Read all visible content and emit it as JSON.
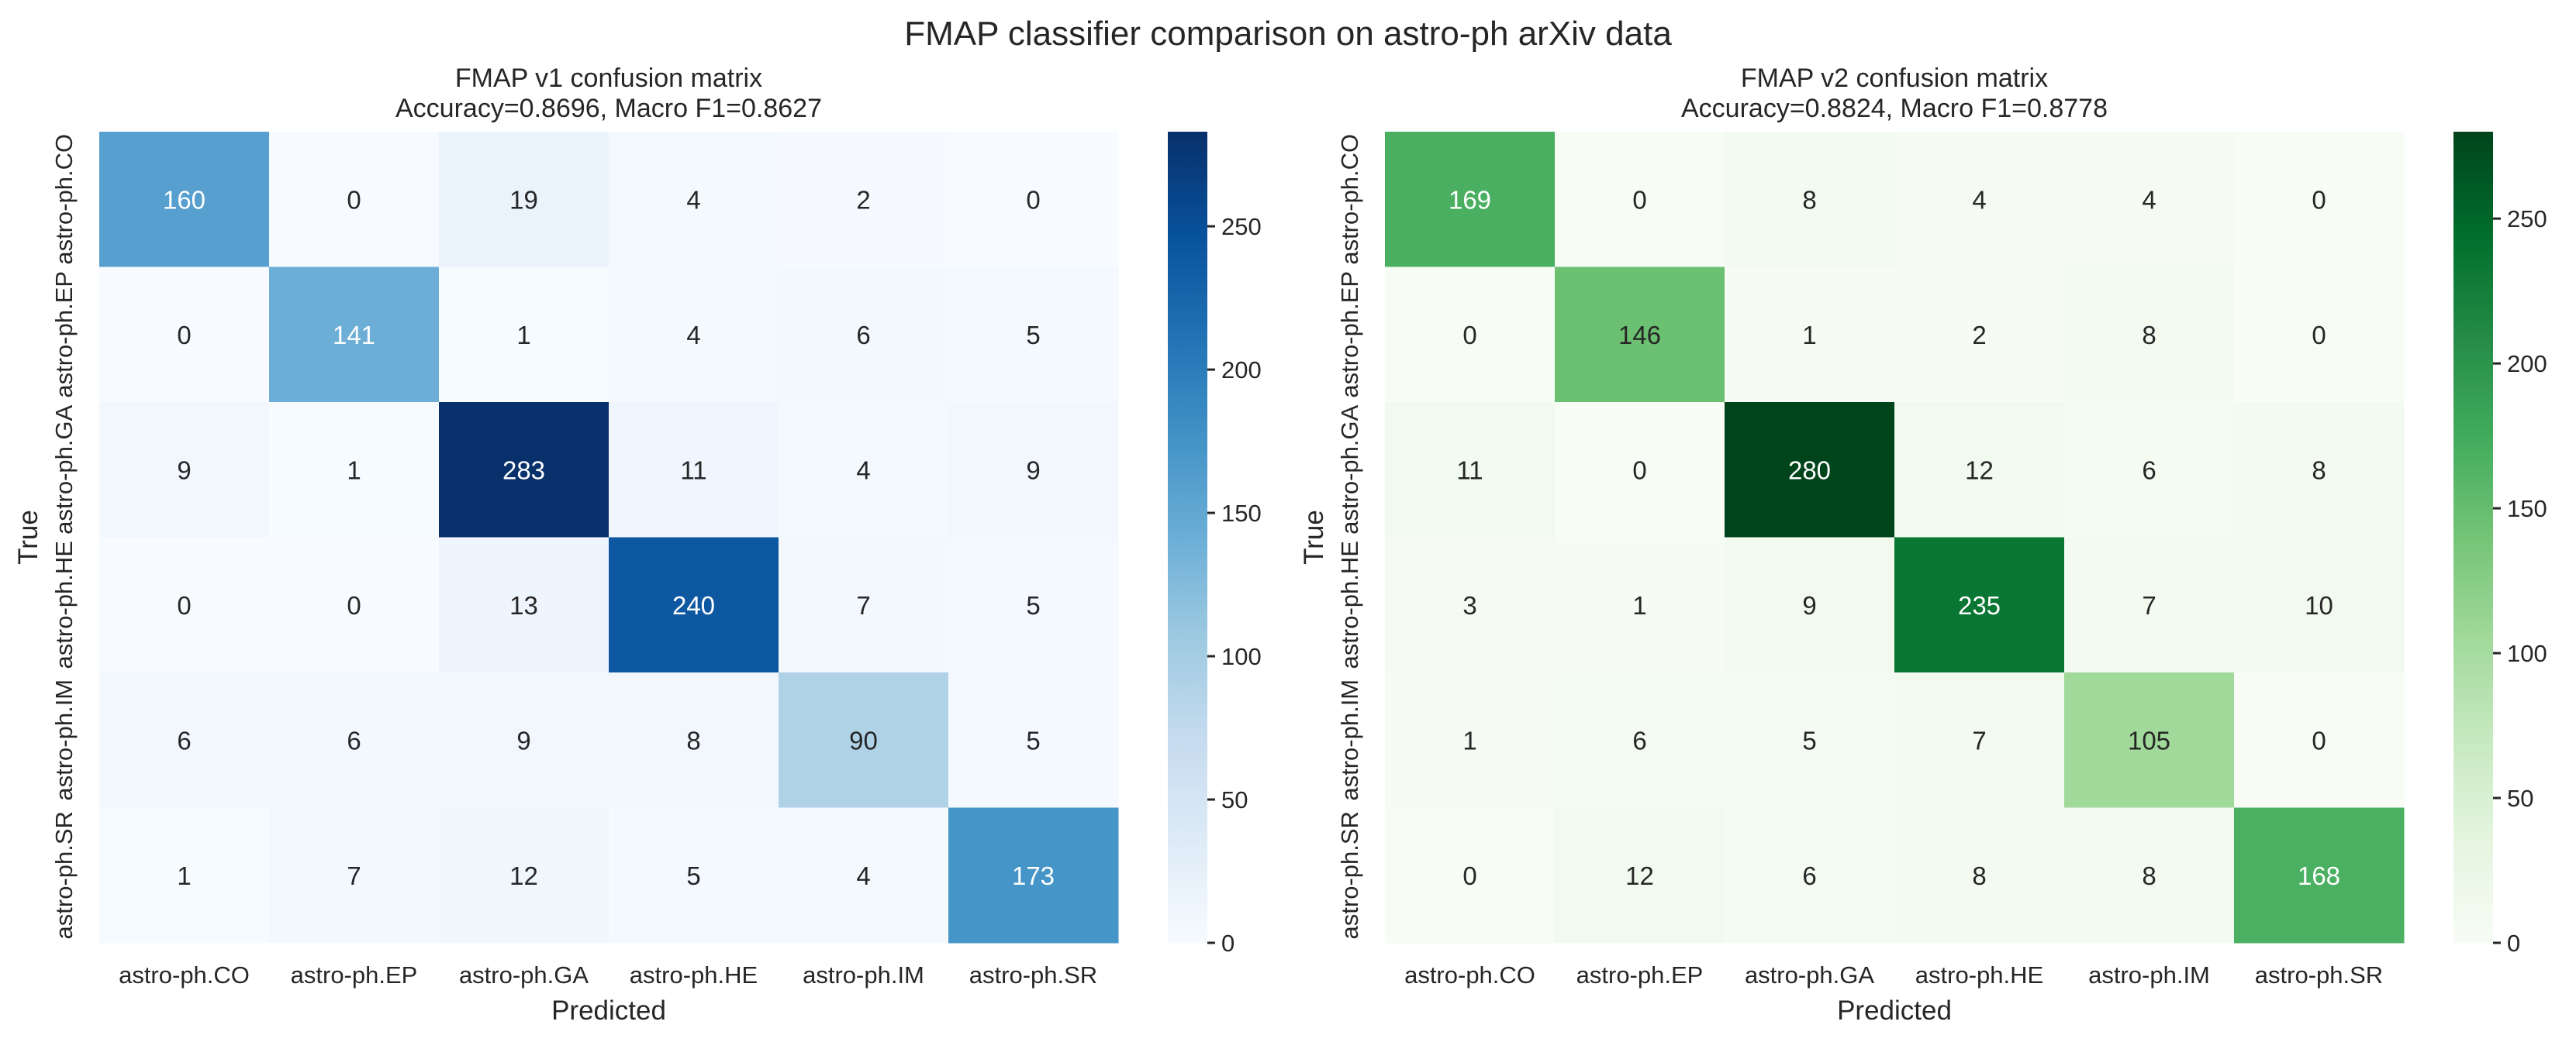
{
  "title": "FMAP classifier comparison on astro-ph arXiv data",
  "chart_data": [
    {
      "type": "heatmap",
      "title": "FMAP v1 confusion matrix",
      "subtitle": "Accuracy=0.8696, Macro F1=0.8627",
      "xlabel": "Predicted",
      "ylabel": "True",
      "colormap": "Blues",
      "colormap_stops": [
        "#f7fbff",
        "#deebf7",
        "#c6dbef",
        "#9ecae1",
        "#6baed6",
        "#4292c6",
        "#2171b5",
        "#08519c",
        "#08306b"
      ],
      "x_categories": [
        "astro-ph.CO",
        "astro-ph.EP",
        "astro-ph.GA",
        "astro-ph.HE",
        "astro-ph.IM",
        "astro-ph.SR"
      ],
      "y_categories": [
        "astro-ph.CO",
        "astro-ph.EP",
        "astro-ph.GA",
        "astro-ph.HE",
        "astro-ph.IM",
        "astro-ph.SR"
      ],
      "values": [
        [
          160,
          0,
          19,
          4,
          2,
          0
        ],
        [
          0,
          141,
          1,
          4,
          6,
          5
        ],
        [
          9,
          1,
          283,
          11,
          4,
          9
        ],
        [
          0,
          0,
          13,
          240,
          7,
          5
        ],
        [
          6,
          6,
          9,
          8,
          90,
          5
        ],
        [
          1,
          7,
          12,
          5,
          4,
          173
        ]
      ],
      "colorbar_range": [
        0,
        283
      ],
      "colorbar_ticks": [
        "0",
        "50",
        "100",
        "150",
        "200",
        "250"
      ]
    },
    {
      "type": "heatmap",
      "title": "FMAP v2 confusion matrix",
      "subtitle": "Accuracy=0.8824, Macro F1=0.8778",
      "xlabel": "Predicted",
      "ylabel": "True",
      "colormap": "Greens",
      "colormap_stops": [
        "#f7fcf5",
        "#e5f5e0",
        "#c7e9c0",
        "#a1d99b",
        "#74c476",
        "#41ab5d",
        "#238b45",
        "#006d2c",
        "#00441b"
      ],
      "x_categories": [
        "astro-ph.CO",
        "astro-ph.EP",
        "astro-ph.GA",
        "astro-ph.HE",
        "astro-ph.IM",
        "astro-ph.SR"
      ],
      "y_categories": [
        "astro-ph.CO",
        "astro-ph.EP",
        "astro-ph.GA",
        "astro-ph.HE",
        "astro-ph.IM",
        "astro-ph.SR"
      ],
      "values": [
        [
          169,
          0,
          8,
          4,
          4,
          0
        ],
        [
          0,
          146,
          1,
          2,
          8,
          0
        ],
        [
          11,
          0,
          280,
          12,
          6,
          8
        ],
        [
          3,
          1,
          9,
          235,
          7,
          10
        ],
        [
          1,
          6,
          5,
          7,
          105,
          0
        ],
        [
          0,
          12,
          6,
          8,
          8,
          168
        ]
      ],
      "colorbar_range": [
        0,
        280
      ],
      "colorbar_ticks": [
        "0",
        "50",
        "100",
        "150",
        "200",
        "250"
      ]
    }
  ]
}
